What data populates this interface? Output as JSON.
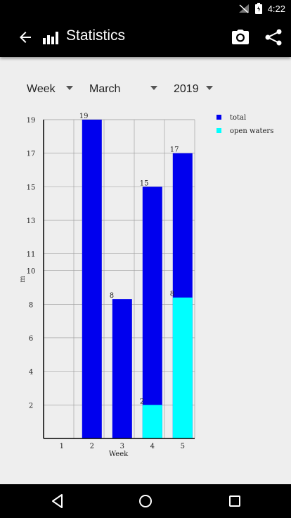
{
  "status": {
    "time": "4:22"
  },
  "header": {
    "title": "Statistics"
  },
  "filters": {
    "period": "Week",
    "month": "March",
    "year": "2019"
  },
  "chart_data": {
    "type": "bar",
    "xlabel": "Week",
    "ylabel": "m",
    "categories": [
      "1",
      "2",
      "3",
      "4",
      "5"
    ],
    "ylim": [
      0,
      19
    ],
    "yticks": [
      2,
      4,
      6,
      8,
      10,
      11,
      13,
      15,
      17,
      19
    ],
    "grid": true,
    "legend_position": "top-right",
    "series": [
      {
        "name": "total",
        "color": "#0000ee",
        "values": [
          0,
          19,
          8.3,
          15,
          17
        ]
      },
      {
        "name": "open waters",
        "color": "#00ffff",
        "values": [
          0,
          0,
          0,
          2,
          8.4
        ]
      }
    ],
    "data_labels": {
      "total": [
        "",
        "19",
        "8",
        "15",
        "17"
      ],
      "open waters": [
        "",
        "",
        "",
        "2",
        "8"
      ]
    }
  }
}
